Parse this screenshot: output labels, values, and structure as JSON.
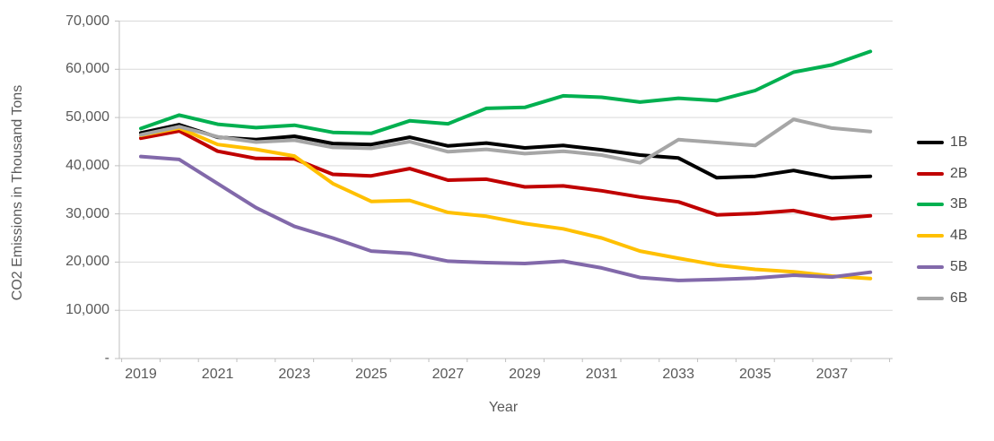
{
  "chart": {
    "y_axis_title": "CO2 Emissions in Thousand Tons",
    "x_axis_title": "Year"
  },
  "colors": {
    "gridline": "#D9D9D9",
    "axis_line": "#BFBFBF",
    "tick_text": "#595959",
    "series_1B": "#000000",
    "series_2B": "#C00000",
    "series_3B": "#00B050",
    "series_4B": "#FFC000",
    "series_5B": "#8269AA",
    "series_6B": "#A6A6A6"
  },
  "chart_data": {
    "type": "line",
    "title": "",
    "xlabel": "Year",
    "ylabel": "CO2 Emissions in Thousand Tons",
    "ylim": [
      0,
      70000
    ],
    "grid": true,
    "legend_position": "right",
    "x": [
      2019,
      2020,
      2021,
      2022,
      2023,
      2024,
      2025,
      2026,
      2027,
      2028,
      2029,
      2030,
      2031,
      2032,
      2033,
      2034,
      2035,
      2036,
      2037,
      2038
    ],
    "x_tick_labels": [
      "2019",
      "2021",
      "2023",
      "2025",
      "2027",
      "2029",
      "2031",
      "2033",
      "2035",
      "2037"
    ],
    "y_ticks": [
      {
        "value": 70000,
        "label": "70,000"
      },
      {
        "value": 60000,
        "label": "60,000"
      },
      {
        "value": 50000,
        "label": "50,000"
      },
      {
        "value": 40000,
        "label": "40,000"
      },
      {
        "value": 30000,
        "label": "30,000"
      },
      {
        "value": 20000,
        "label": "20,000"
      },
      {
        "value": 10000,
        "label": "10,000"
      },
      {
        "value": 0,
        "label": "-"
      }
    ],
    "series": [
      {
        "name": "1B",
        "color": "#000000",
        "values": [
          46800,
          48500,
          45900,
          45400,
          46100,
          44600,
          44400,
          45900,
          44100,
          44700,
          43700,
          44200,
          43300,
          42200,
          41600,
          37500,
          37800,
          39000,
          37500,
          37800
        ]
      },
      {
        "name": "2B",
        "color": "#C00000",
        "values": [
          45700,
          47200,
          43000,
          41500,
          41400,
          38200,
          37900,
          39400,
          37000,
          37200,
          35600,
          35800,
          34800,
          33500,
          32500,
          29800,
          30100,
          30700,
          29000,
          29600
        ]
      },
      {
        "name": "3B",
        "color": "#00B050",
        "values": [
          47700,
          50500,
          48600,
          47900,
          48400,
          46900,
          46700,
          49300,
          48700,
          51900,
          52100,
          54500,
          54200,
          53200,
          54000,
          53500,
          55600,
          59400,
          60900,
          63700
        ]
      },
      {
        "name": "4B",
        "color": "#FFC000",
        "values": [
          46300,
          47800,
          44400,
          43400,
          42000,
          36300,
          32600,
          32800,
          30300,
          29500,
          28000,
          26900,
          25000,
          22300,
          20800,
          19400,
          18500,
          18000,
          17100,
          16600
        ]
      },
      {
        "name": "5B",
        "color": "#8269AA",
        "values": [
          41900,
          41300,
          36300,
          31300,
          27400,
          25000,
          22300,
          21800,
          20200,
          19900,
          19700,
          20200,
          18800,
          16800,
          16200,
          16400,
          16700,
          17300,
          16900,
          17900
        ]
      },
      {
        "name": "6B",
        "color": "#A6A6A6",
        "values": [
          46400,
          48100,
          46000,
          44900,
          45300,
          43800,
          43600,
          45000,
          42900,
          43400,
          42500,
          43000,
          42200,
          40600,
          45400,
          44800,
          44200,
          49600,
          47800,
          47100
        ]
      }
    ]
  }
}
